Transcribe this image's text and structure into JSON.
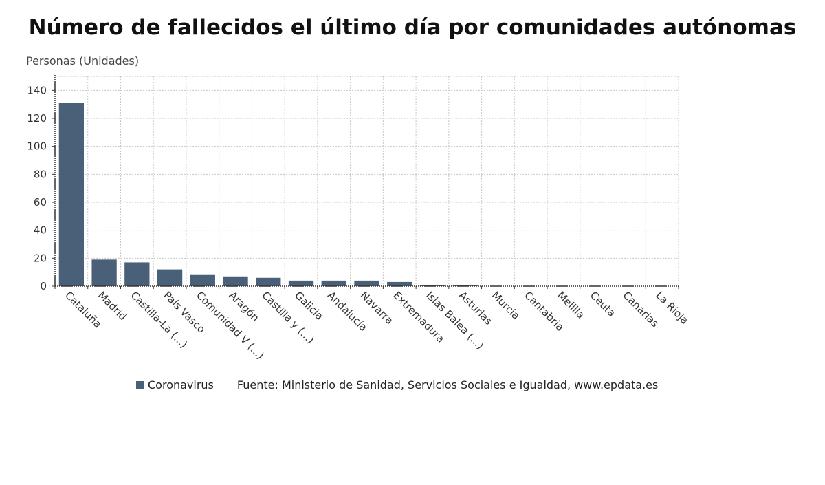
{
  "chart_data": {
    "type": "bar",
    "title": "Número de fallecidos el último día por comunidades autónomas",
    "ylabel": "Personas (Unidades)",
    "xlabel": "",
    "ylim": [
      0,
      150
    ],
    "yticks": [
      0,
      20,
      40,
      60,
      80,
      100,
      120,
      140
    ],
    "categories": [
      "Cataluña",
      "Madrid",
      "Castilla-La (...)",
      "País Vasco",
      "Comunidad V (...)",
      "Aragón",
      "Castilla y (...)",
      "Galicia",
      "Andalucía",
      "Navarra",
      "Extremadura",
      "Islas Balea (...)",
      "Asturias",
      "Murcia",
      "Cantabria",
      "Melilla",
      "Ceuta",
      "Canarias",
      "La Rioja"
    ],
    "series": [
      {
        "name": "Coronavirus",
        "values": [
          131,
          19,
          17,
          12,
          8,
          7,
          6,
          4,
          4,
          4,
          3,
          1,
          1,
          0,
          0,
          0,
          0,
          0,
          0
        ]
      }
    ],
    "grid": true,
    "legend_position": "bottom-left",
    "bar_color": "#4a6078"
  },
  "source": "Fuente: Ministerio de Sanidad, Servicios Sociales e Igualdad, www.epdata.es"
}
